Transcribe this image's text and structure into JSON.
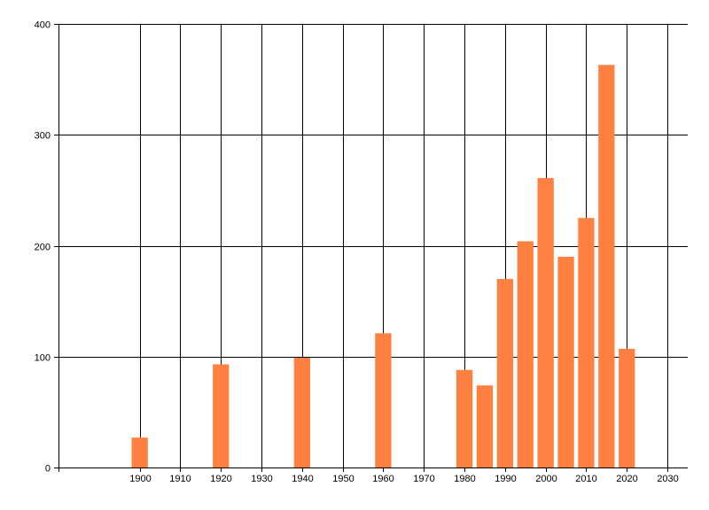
{
  "chart_data": {
    "type": "bar",
    "title": "",
    "xlabel": "",
    "ylabel": "",
    "x": [
      1900,
      1920,
      1940,
      1960,
      1980,
      1985,
      1990,
      1995,
      2000,
      2005,
      2010,
      2015,
      2020
    ],
    "values": [
      27,
      93,
      99,
      121,
      88,
      74,
      170,
      204,
      261,
      190,
      225,
      363,
      107
    ],
    "bar_width_years": 4,
    "xlim": [
      1880,
      2035
    ],
    "ylim": [
      0,
      400
    ],
    "x_ticks": [
      "1900",
      "1910",
      "1920",
      "1930",
      "1940",
      "1950",
      "1960",
      "1970",
      "1980",
      "1990",
      "2000",
      "2010",
      "2020",
      "2030"
    ],
    "y_ticks": [
      "0",
      "100",
      "200",
      "300",
      "400"
    ],
    "grid": true,
    "legend": "none",
    "colors": {
      "bar": "#ff8040",
      "grid": "#000000",
      "axis": "#000000"
    }
  }
}
